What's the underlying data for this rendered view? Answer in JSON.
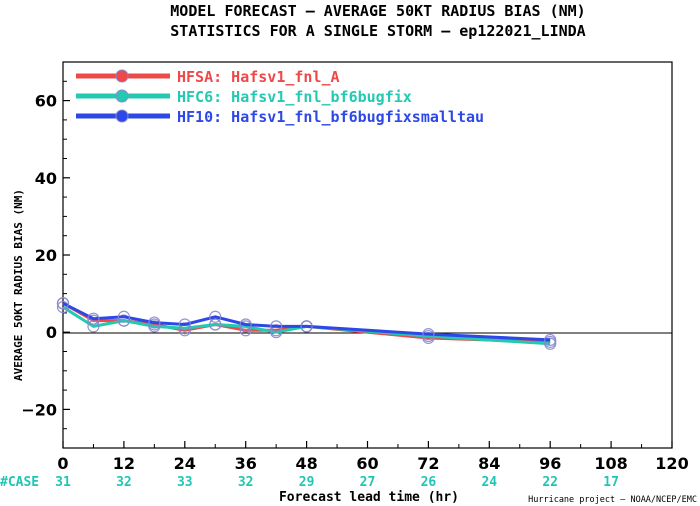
{
  "title_line1": "MODEL FORECAST – AVERAGE 50KT RADIUS BIAS (NM)",
  "title_line2": "STATISTICS FOR A SINGLE STORM – ep122021_LINDA",
  "case_label": "#CASE",
  "credit": "Hurricane project – NOAA/NCEP/EMC",
  "colors": {
    "axis": "#000000",
    "case_text": "#1fc6b4"
  },
  "chart_data": {
    "type": "line",
    "xlabel": "Forecast lead time (hr)",
    "ylabel": "AVERAGE 50KT RADIUS BIAS (NM)",
    "xlim": [
      0,
      120
    ],
    "ylim": [
      -30,
      70
    ],
    "xticks": [
      0,
      12,
      24,
      36,
      48,
      60,
      72,
      84,
      96,
      108,
      120
    ],
    "xtick_labels": [
      "0",
      "12",
      "24",
      "36",
      "48",
      "60",
      "72",
      "84",
      "96",
      "108",
      "120"
    ],
    "yticks": [
      -20,
      0,
      20,
      40,
      60
    ],
    "ytick_labels": [
      "−20",
      "0",
      "20",
      "40",
      "60"
    ],
    "zero_line": true,
    "grid": false,
    "legend_position": "top-left",
    "cases": [
      {
        "x": 0,
        "label": "31"
      },
      {
        "x": 12,
        "label": "32"
      },
      {
        "x": 24,
        "label": "33"
      },
      {
        "x": 36,
        "label": "32"
      },
      {
        "x": 48,
        "label": "29"
      },
      {
        "x": 60,
        "label": "27"
      },
      {
        "x": 72,
        "label": "26"
      },
      {
        "x": 84,
        "label": "24"
      },
      {
        "x": 96,
        "label": "22"
      },
      {
        "x": 108,
        "label": "17"
      }
    ],
    "marker_x": [
      0,
      6,
      12,
      18,
      24,
      30,
      36,
      42,
      48,
      72,
      96
    ],
    "series": [
      {
        "name": "HFSA: Hafsv1_fnl_A",
        "color": "#ef4848",
        "x": [
          0,
          6,
          12,
          18,
          24,
          30,
          36,
          42,
          48,
          72,
          96
        ],
        "y": [
          7.5,
          3.0,
          3.0,
          2.0,
          0.5,
          2.0,
          0.5,
          0.5,
          1.5,
          -1.5,
          -2.5
        ]
      },
      {
        "name": "HFC6: Hafsv1_fnl_bf6bugfix",
        "color": "#23c9b1",
        "x": [
          0,
          6,
          12,
          18,
          24,
          30,
          36,
          42,
          48,
          72,
          96
        ],
        "y": [
          6.5,
          1.5,
          3.0,
          1.5,
          1.0,
          2.0,
          1.5,
          0.0,
          1.5,
          -1.0,
          -3.0
        ]
      },
      {
        "name": "HF10: Hafsv1_fnl_bf6bugfixsmalltau",
        "color": "#2e48e8",
        "x": [
          0,
          6,
          12,
          18,
          24,
          30,
          36,
          42,
          48,
          72,
          96
        ],
        "y": [
          7.5,
          3.5,
          4.0,
          2.5,
          2.0,
          4.0,
          2.0,
          1.5,
          1.5,
          -0.5,
          -2.0
        ]
      }
    ]
  }
}
